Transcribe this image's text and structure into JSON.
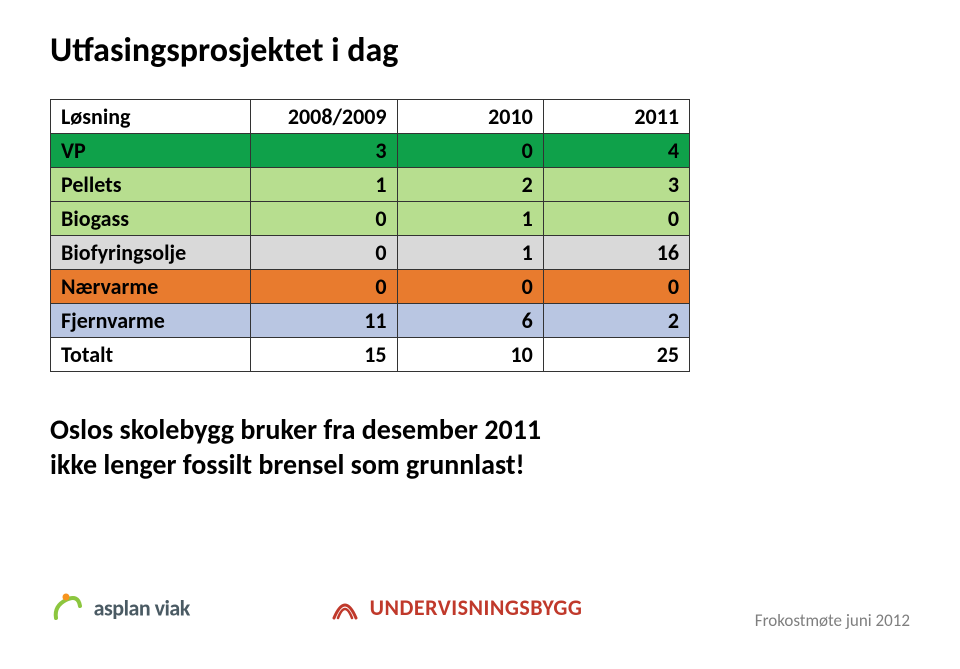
{
  "slide": {
    "title": "Utfasingsprosjektet i dag",
    "callout_line1": "Oslos skolebygg bruker fra desember 2011",
    "callout_line2": "ikke lenger fossilt brensel som grunnlast!"
  },
  "table": {
    "columns": [
      "Løsning",
      "2008/2009",
      "2010",
      "2011"
    ],
    "rows": [
      {
        "label": "VP",
        "values": [
          3,
          0,
          4
        ],
        "bg": "#0fa14a"
      },
      {
        "label": "Pellets",
        "values": [
          1,
          2,
          3
        ],
        "bg": "#b7de8f"
      },
      {
        "label": "Biogass",
        "values": [
          0,
          1,
          0
        ],
        "bg": "#b7de8f"
      },
      {
        "label": "Biofyringsolje",
        "values": [
          0,
          1,
          16
        ],
        "bg": "#d9d9d9"
      },
      {
        "label": "Nærvarme",
        "values": [
          0,
          0,
          0
        ],
        "bg": "#e87b2e"
      },
      {
        "label": "Fjernvarme",
        "values": [
          11,
          6,
          2
        ],
        "bg": "#b9c6e2"
      },
      {
        "label": "Totalt",
        "values": [
          15,
          10,
          25
        ],
        "bg": "#ffffff"
      }
    ],
    "header_bg": "#ffffff",
    "border_color": "#333333",
    "cell_fontsize": 22
  },
  "footer": {
    "text": "Frokostmøte juni 2012",
    "logo_left": {
      "text": "asplan viak",
      "color": "#4a5a63",
      "accent1": "#8cc63f",
      "accent2": "#f7941e"
    },
    "logo_center": {
      "text": "UNDERVISNINGSBYGG",
      "color": "#c0392b"
    }
  }
}
